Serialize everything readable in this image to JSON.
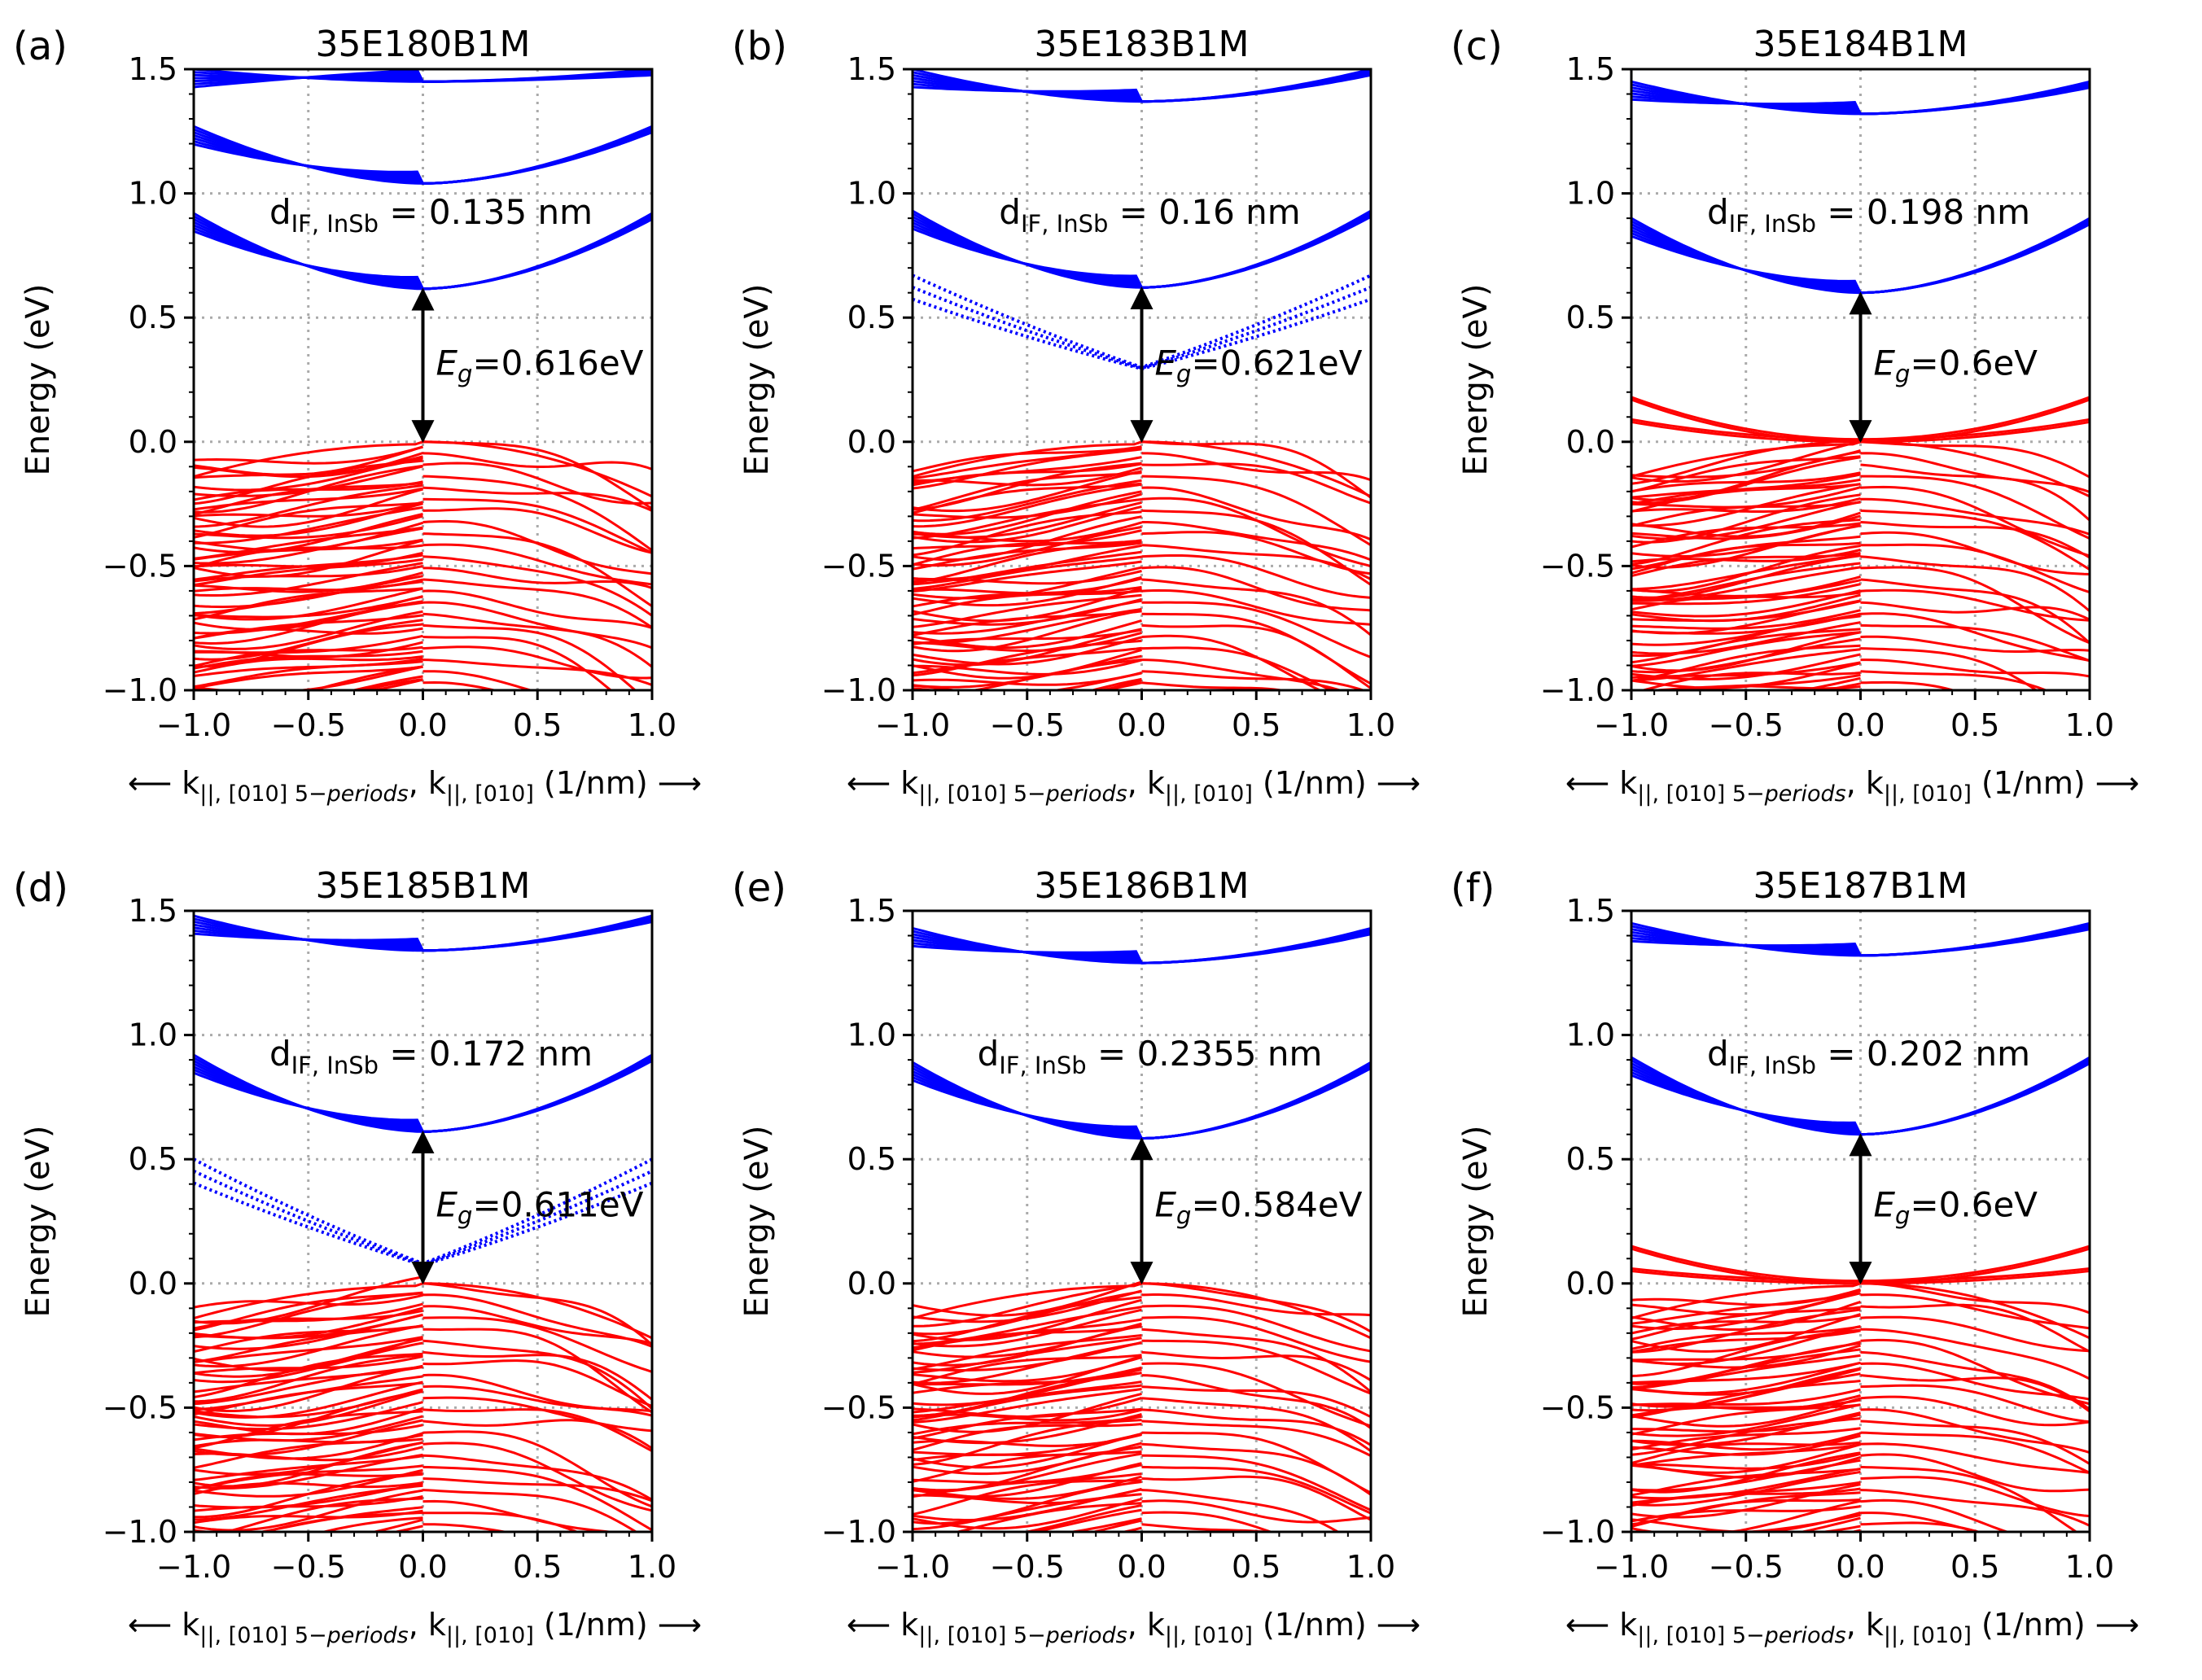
{
  "chart_data": [
    {
      "type": "line",
      "panel_label": "(a)",
      "title": "35E180B1M",
      "xlim": [
        -1.0,
        1.0
      ],
      "ylim": [
        -1.0,
        1.5
      ],
      "x_ticks": [
        -1.0,
        -0.5,
        0.0,
        0.5,
        1.0
      ],
      "y_ticks": [
        -1.0,
        -0.5,
        0.0,
        0.5,
        1.0,
        1.5
      ],
      "x_tick_labels": [
        "−1.0",
        "−0.5",
        "0.0",
        "0.5",
        "1.0"
      ],
      "y_tick_labels": [
        "−1.0",
        "−0.5",
        "0.0",
        "0.5",
        "1.0",
        "1.5"
      ],
      "ylabel": "Energy (eV)",
      "xlabel": "⟵ k||,[010]5−periods, k||,[010] (1/nm) ⟶",
      "grid": true,
      "interface_annotation": {
        "text": "d_IF,InSb = 0.135 nm",
        "value_nm": 0.135
      },
      "gap_annotation": {
        "text": "Eg=0.616eV",
        "value_eV": 0.616
      },
      "conduction_bands_blue": [
        {
          "edge_E_left": 0.92,
          "min_E": 0.616,
          "edge_E_right": 0.92
        },
        {
          "edge_E_left": 1.27,
          "min_E": 1.04,
          "edge_E_right": 1.27
        },
        {
          "edge_E_left": 1.5,
          "min_E": 1.45,
          "edge_E_right": 1.5
        }
      ],
      "valence_band_top_eV": 0.0,
      "valence_band_bottom_eV": -1.0,
      "interface_bands_dotted_blue": [],
      "interface_bands_red_above_vbm": []
    },
    {
      "type": "line",
      "panel_label": "(b)",
      "title": "35E183B1M",
      "xlim": [
        -1.0,
        1.0
      ],
      "ylim": [
        -1.0,
        1.5
      ],
      "x_ticks": [
        -1.0,
        -0.5,
        0.0,
        0.5,
        1.0
      ],
      "y_ticks": [
        -1.0,
        -0.5,
        0.0,
        0.5,
        1.0,
        1.5
      ],
      "x_tick_labels": [
        "−1.0",
        "−0.5",
        "0.0",
        "0.5",
        "1.0"
      ],
      "y_tick_labels": [
        "−1.0",
        "−0.5",
        "0.0",
        "0.5",
        "1.0",
        "1.5"
      ],
      "ylabel": "Energy (eV)",
      "xlabel": "⟵ k||,[010]5−periods, k||,[010] (1/nm) ⟶",
      "grid": true,
      "interface_annotation": {
        "text": "d_IF,InSb = 0.16 nm",
        "value_nm": 0.16
      },
      "gap_annotation": {
        "text": "Eg=0.621eV",
        "value_eV": 0.621
      },
      "conduction_bands_blue": [
        {
          "edge_E_left": 0.93,
          "min_E": 0.621,
          "edge_E_right": 0.93
        },
        {
          "edge_E_left": 1.5,
          "min_E": 1.37,
          "edge_E_right": 1.5
        }
      ],
      "valence_band_top_eV": 0.0,
      "valence_band_bottom_eV": -1.0,
      "interface_bands_dotted_blue": [
        {
          "edge_E_left": 0.67,
          "min_E": 0.3,
          "edge_E_right": 0.67
        }
      ],
      "interface_bands_red_above_vbm": []
    },
    {
      "type": "line",
      "panel_label": "(c)",
      "title": "35E184B1M",
      "xlim": [
        -1.0,
        1.0
      ],
      "ylim": [
        -1.0,
        1.5
      ],
      "x_ticks": [
        -1.0,
        -0.5,
        0.0,
        0.5,
        1.0
      ],
      "y_ticks": [
        -1.0,
        -0.5,
        0.0,
        0.5,
        1.0,
        1.5
      ],
      "x_tick_labels": [
        "−1.0",
        "−0.5",
        "0.0",
        "0.5",
        "1.0"
      ],
      "y_tick_labels": [
        "−1.0",
        "−0.5",
        "0.0",
        "0.5",
        "1.0",
        "1.5"
      ],
      "ylabel": "Energy (eV)",
      "xlabel": "⟵ k||,[010]5−periods, k||,[010] (1/nm) ⟶",
      "grid": true,
      "interface_annotation": {
        "text": "d_IF,InSb = 0.198 nm",
        "value_nm": 0.198
      },
      "gap_annotation": {
        "text": "Eg=0.6eV",
        "value_eV": 0.6
      },
      "conduction_bands_blue": [
        {
          "edge_E_left": 0.9,
          "min_E": 0.6,
          "edge_E_right": 0.9
        },
        {
          "edge_E_left": 1.45,
          "min_E": 1.32,
          "edge_E_right": 1.45
        }
      ],
      "valence_band_top_eV": 0.0,
      "valence_band_bottom_eV": -1.0,
      "interface_bands_dotted_blue": [],
      "interface_bands_red_above_vbm": [
        {
          "edge_E_left": 0.17,
          "min_E": 0.0,
          "edge_E_right": 0.17
        },
        {
          "edge_E_left": 0.08,
          "min_E": 0.0,
          "edge_E_right": 0.08
        }
      ]
    },
    {
      "type": "line",
      "panel_label": "(d)",
      "title": "35E185B1M",
      "xlim": [
        -1.0,
        1.0
      ],
      "ylim": [
        -1.0,
        1.5
      ],
      "x_ticks": [
        -1.0,
        -0.5,
        0.0,
        0.5,
        1.0
      ],
      "y_ticks": [
        -1.0,
        -0.5,
        0.0,
        0.5,
        1.0,
        1.5
      ],
      "x_tick_labels": [
        "−1.0",
        "−0.5",
        "0.0",
        "0.5",
        "1.0"
      ],
      "y_tick_labels": [
        "−1.0",
        "−0.5",
        "0.0",
        "0.5",
        "1.0",
        "1.5"
      ],
      "ylabel": "Energy (eV)",
      "xlabel": "⟵ k||,[010]5−periods, k||,[010] (1/nm) ⟶",
      "grid": true,
      "interface_annotation": {
        "text": "d_IF,InSb = 0.172 nm",
        "value_nm": 0.172
      },
      "gap_annotation": {
        "text": "Eg=0.611eV",
        "value_eV": 0.611
      },
      "conduction_bands_blue": [
        {
          "edge_E_left": 0.92,
          "min_E": 0.611,
          "edge_E_right": 0.92
        },
        {
          "edge_E_left": 1.48,
          "min_E": 1.34,
          "edge_E_right": 1.48
        }
      ],
      "valence_band_top_eV": 0.0,
      "valence_band_bottom_eV": -1.0,
      "interface_bands_dotted_blue": [
        {
          "edge_E_left": 0.5,
          "min_E": 0.08,
          "edge_E_right": 0.5
        }
      ],
      "interface_bands_red_above_vbm": []
    },
    {
      "type": "line",
      "panel_label": "(e)",
      "title": "35E186B1M",
      "xlim": [
        -1.0,
        1.0
      ],
      "ylim": [
        -1.0,
        1.5
      ],
      "x_ticks": [
        -1.0,
        -0.5,
        0.0,
        0.5,
        1.0
      ],
      "y_ticks": [
        -1.0,
        -0.5,
        0.0,
        0.5,
        1.0,
        1.5
      ],
      "x_tick_labels": [
        "−1.0",
        "−0.5",
        "0.0",
        "0.5",
        "1.0"
      ],
      "y_tick_labels": [
        "−1.0",
        "−0.5",
        "0.0",
        "0.5",
        "1.0",
        "1.5"
      ],
      "ylabel": "Energy (eV)",
      "xlabel": "⟵ k||,[010]5−periods, k||,[010] (1/nm) ⟶",
      "grid": true,
      "interface_annotation": {
        "text": "d_IF,InSb = 0.2355 nm",
        "value_nm": 0.2355
      },
      "gap_annotation": {
        "text": "Eg=0.584eV",
        "value_eV": 0.584
      },
      "conduction_bands_blue": [
        {
          "edge_E_left": 0.89,
          "min_E": 0.584,
          "edge_E_right": 0.89
        },
        {
          "edge_E_left": 1.43,
          "min_E": 1.29,
          "edge_E_right": 1.43
        }
      ],
      "valence_band_top_eV": 0.0,
      "valence_band_bottom_eV": -1.0,
      "interface_bands_dotted_blue": [],
      "interface_bands_red_above_vbm": []
    },
    {
      "type": "line",
      "panel_label": "(f)",
      "title": "35E187B1M",
      "xlim": [
        -1.0,
        1.0
      ],
      "ylim": [
        -1.0,
        1.5
      ],
      "x_ticks": [
        -1.0,
        -0.5,
        0.0,
        0.5,
        1.0
      ],
      "y_ticks": [
        -1.0,
        -0.5,
        0.0,
        0.5,
        1.0,
        1.5
      ],
      "x_tick_labels": [
        "−1.0",
        "−0.5",
        "0.0",
        "0.5",
        "1.0"
      ],
      "y_tick_labels": [
        "−1.0",
        "−0.5",
        "0.0",
        "0.5",
        "1.0",
        "1.5"
      ],
      "ylabel": "Energy (eV)",
      "xlabel": "⟵ k||,[010]5−periods, k||,[010] (1/nm) ⟶",
      "grid": true,
      "interface_annotation": {
        "text": "d_IF,InSb = 0.202 nm",
        "value_nm": 0.202
      },
      "gap_annotation": {
        "text": "Eg=0.6eV",
        "value_eV": 0.6
      },
      "conduction_bands_blue": [
        {
          "edge_E_left": 0.91,
          "min_E": 0.6,
          "edge_E_right": 0.91
        },
        {
          "edge_E_left": 1.45,
          "min_E": 1.32,
          "edge_E_right": 1.45
        }
      ],
      "valence_band_top_eV": 0.0,
      "valence_band_bottom_eV": -1.0,
      "interface_bands_dotted_blue": [],
      "interface_bands_red_above_vbm": [
        {
          "edge_E_left": 0.14,
          "min_E": 0.0,
          "edge_E_right": 0.14
        },
        {
          "edge_E_left": 0.05,
          "min_E": 0.0,
          "edge_E_right": 0.05
        }
      ]
    }
  ],
  "colors": {
    "conduction": "#0000ff",
    "valence": "#ff0000",
    "grid": "#aaaaaa",
    "axes": "#000000"
  }
}
